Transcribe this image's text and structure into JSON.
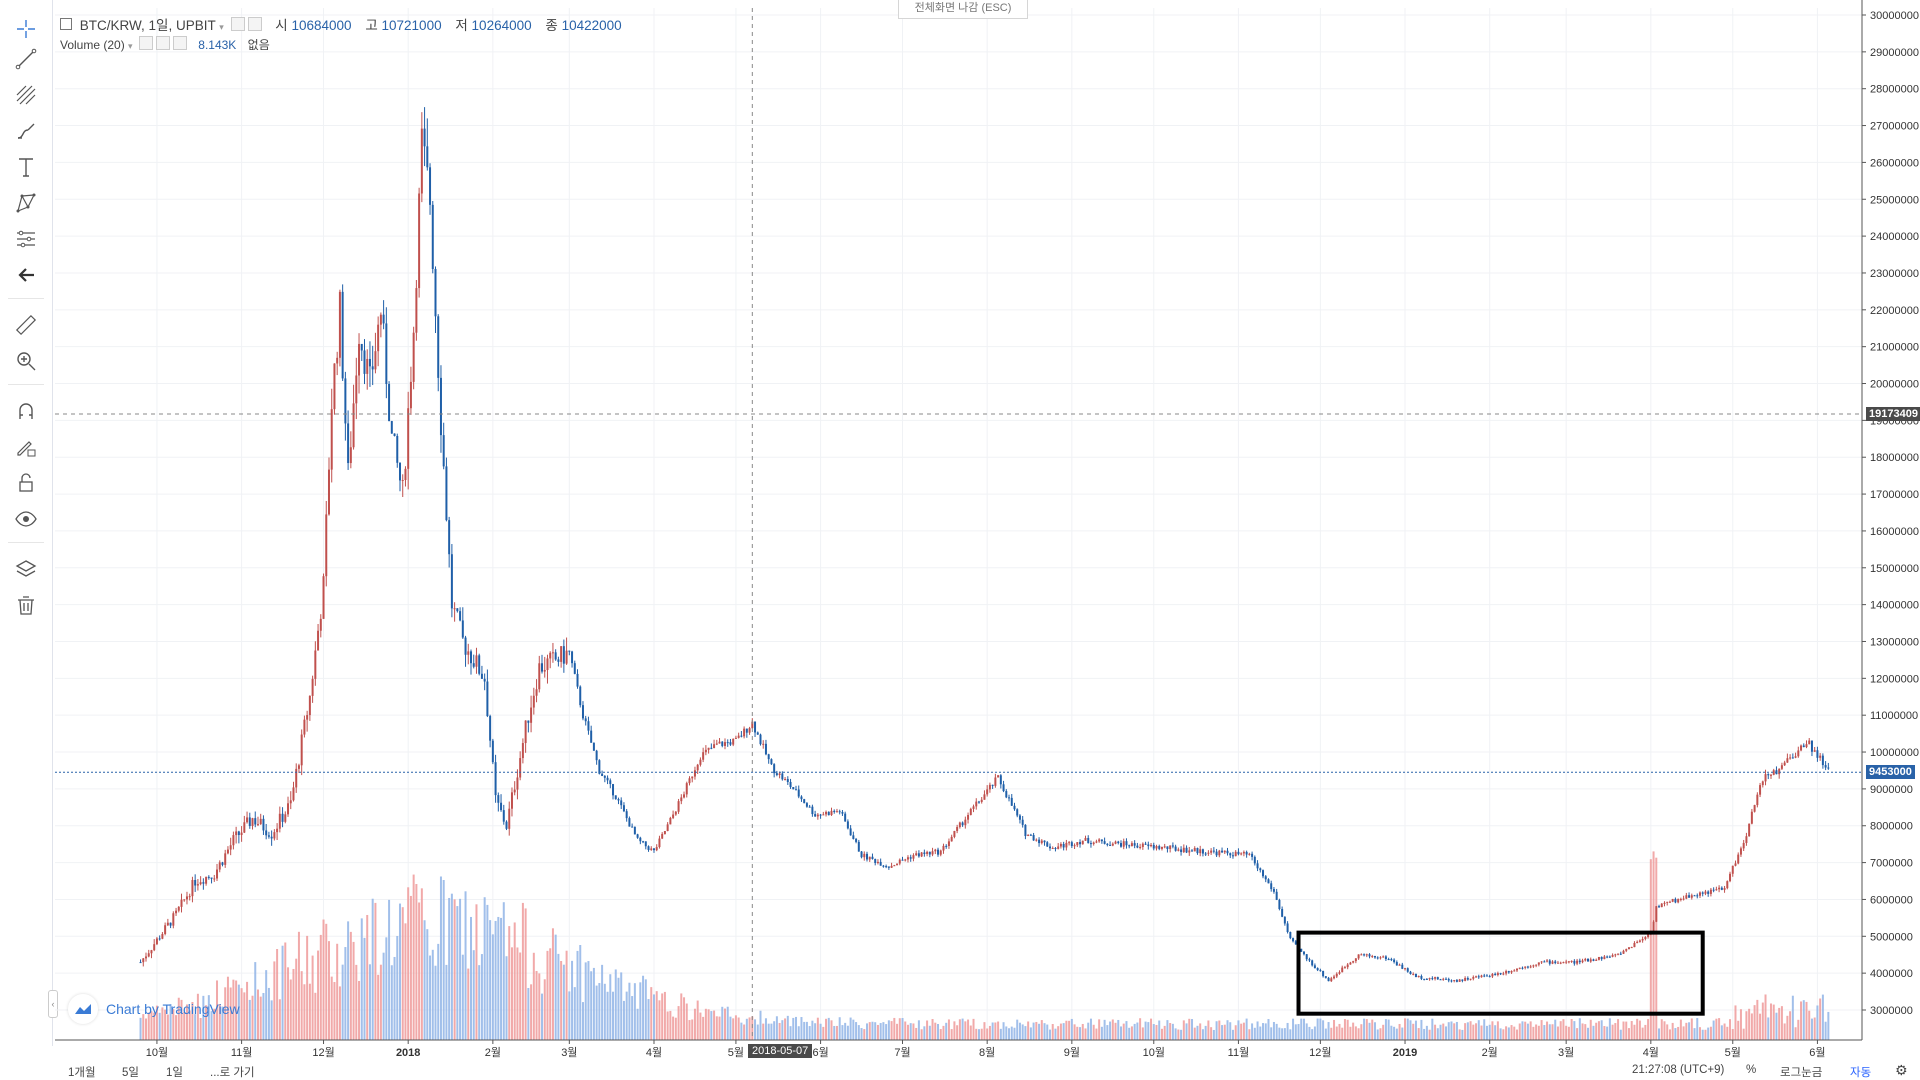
{
  "header": {
    "symbol": "BTC/KRW, 1일, UPBIT",
    "open_label": "시",
    "open_value": "10684000",
    "high_label": "고",
    "high_value": "10721000",
    "low_label": "저",
    "low_value": "10264000",
    "close_label": "종",
    "close_value": "10422000",
    "volume_label": "Volume (20)",
    "volume_value": "8.143K",
    "volume_none": "없음"
  },
  "fullscreen_exit": "전체화면 나감 (ESC)",
  "branding": "Chart by TradingView",
  "crosshair": {
    "date_label": "2018-05-07",
    "price_label": "19173409"
  },
  "last_price": {
    "label": "9453000",
    "color": "#2962a8"
  },
  "bottom_bar": {
    "timeframes": [
      "1개월",
      "5일",
      "1일",
      "...로 가기"
    ],
    "clock": "21:27:08 (UTC+9)",
    "percent": "%",
    "log": "로그눈금",
    "auto": "자동"
  },
  "toolbar": {
    "icons": [
      "crosshair-icon",
      "trend-line-icon",
      "pitchfork-icon",
      "brush-icon",
      "text-icon",
      "pattern-icon",
      "forecast-icon",
      "back-arrow-icon",
      "ruler-icon",
      "zoom-in-icon",
      "magnet-icon",
      "lock-pencil-icon",
      "unlock-icon",
      "eye-icon",
      "layers-icon",
      "trash-icon"
    ]
  },
  "colors": {
    "up": "#c0504d",
    "down": "#1f5fa8",
    "up_volume": "#ef9a9a",
    "down_volume": "#90b4e6",
    "grid": "#f0f2f5",
    "highlight_box": "#000000"
  },
  "chart_data": {
    "type": "line",
    "title": "",
    "xlabel": "",
    "ylabel": "",
    "x_tick_labels": [
      "10월",
      "11월",
      "12월",
      "2018",
      "2월",
      "3월",
      "4월",
      "5월",
      "6월",
      "7월",
      "8월",
      "9월",
      "10월",
      "11월",
      "12월",
      "2019",
      "2월",
      "3월",
      "4월",
      "5월",
      "6월"
    ],
    "y_tick_labels": [
      "3000000",
      "4000000",
      "5000000",
      "6000000",
      "7000000",
      "8000000",
      "9000000",
      "10000000",
      "11000000",
      "12000000",
      "13000000",
      "14000000",
      "15000000",
      "16000000",
      "17000000",
      "18000000",
      "19000000",
      "20000000",
      "21000000",
      "22000000",
      "23000000",
      "24000000",
      "25000000",
      "26000000",
      "27000000",
      "28000000",
      "29000000",
      "30000000"
    ],
    "ylim": [
      2000000,
      30000000
    ],
    "grid": true,
    "series": [
      {
        "x": [
          "2017-09-25",
          "2017-10-01",
          "2017-10-08",
          "2017-10-15",
          "2017-10-22",
          "2017-10-29",
          "2017-11-05",
          "2017-11-12",
          "2017-11-19",
          "2017-11-26",
          "2017-12-01",
          "2017-12-04",
          "2017-12-07",
          "2017-12-10",
          "2017-12-14",
          "2017-12-18",
          "2017-12-22",
          "2017-12-26",
          "2017-12-30",
          "2018-01-03",
          "2018-01-06",
          "2018-01-09",
          "2018-01-13",
          "2018-01-17",
          "2018-01-21",
          "2018-01-25",
          "2018-01-29",
          "2018-02-02",
          "2018-02-06",
          "2018-02-10",
          "2018-02-14",
          "2018-02-18",
          "2018-02-24",
          "2018-03-01",
          "2018-03-06",
          "2018-03-12",
          "2018-03-18",
          "2018-03-26",
          "2018-04-01",
          "2018-04-06",
          "2018-04-12",
          "2018-04-18",
          "2018-04-24",
          "2018-05-01",
          "2018-05-07",
          "2018-05-14",
          "2018-05-22",
          "2018-05-30",
          "2018-06-08",
          "2018-06-16",
          "2018-06-26",
          "2018-07-05",
          "2018-07-15",
          "2018-07-25",
          "2018-08-05",
          "2018-08-15",
          "2018-08-25",
          "2018-09-05",
          "2018-09-20",
          "2018-10-05",
          "2018-10-20",
          "2018-11-05",
          "2018-11-14",
          "2018-11-20",
          "2018-11-26",
          "2018-12-04",
          "2018-12-15",
          "2018-12-26",
          "2019-01-05",
          "2019-01-20",
          "2019-02-05",
          "2019-02-20",
          "2019-03-05",
          "2019-03-20",
          "2019-04-01",
          "2019-04-03",
          "2019-04-15",
          "2019-04-28",
          "2019-05-06",
          "2019-05-12",
          "2019-05-18",
          "2019-05-23",
          "2019-05-28",
          "2019-06-01",
          "2019-06-05"
        ],
        "values": [
          4300000,
          4900000,
          5600000,
          6500000,
          6700000,
          7600000,
          8200000,
          7800000,
          8600000,
          11500000,
          14500000,
          19500000,
          22000000,
          17500000,
          21500000,
          20000000,
          22000000,
          18500000,
          17000000,
          21500000,
          26500000,
          25000000,
          19000000,
          14000000,
          13000000,
          12500000,
          12000000,
          8700000,
          8000000,
          9500000,
          11000000,
          12300000,
          12500000,
          12700000,
          11000000,
          9500000,
          8800000,
          7600000,
          7300000,
          8000000,
          8900000,
          9900000,
          10200000,
          10300000,
          10800000,
          9600000,
          9000000,
          8300000,
          8400000,
          7200000,
          6900000,
          7200000,
          7300000,
          8300000,
          9300000,
          7800000,
          7400000,
          7600000,
          7500000,
          7400000,
          7300000,
          7200000,
          6200000,
          4900000,
          4400000,
          3800000,
          4500000,
          4400000,
          3900000,
          3800000,
          4000000,
          4300000,
          4300000,
          4500000,
          5100000,
          5800000,
          6100000,
          6300000,
          7800000,
          9300000,
          9500000,
          9900000,
          10300000,
          9900000,
          9500000
        ]
      }
    ],
    "volume_description": "Volume (20) histogram, peak around January 2018"
  }
}
